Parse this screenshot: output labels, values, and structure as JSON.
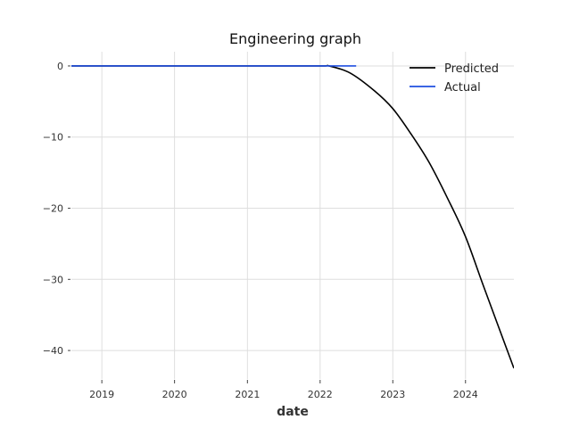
{
  "chart_data": {
    "type": "line",
    "title": "Engineering graph",
    "xlabel": "date",
    "ylabel": "",
    "xlim": [
      "2018-08-01",
      "2024-08-31"
    ],
    "ylim": [
      -44,
      2
    ],
    "x_ticks": [
      "2019",
      "2020",
      "2021",
      "2022",
      "2023",
      "2024"
    ],
    "y_ticks": [
      0,
      -10,
      -20,
      -30,
      -40
    ],
    "y_tick_labels": [
      "0",
      "−10",
      "−20",
      "−30",
      "−40"
    ],
    "grid": true,
    "legend_position": "top-right",
    "series": [
      {
        "name": "Predicted",
        "color": "#000000",
        "x": [
          "2018-08-01",
          "2019-01-01",
          "2020-01-01",
          "2021-01-01",
          "2022-01-01",
          "2022-02-15",
          "2022-06-01",
          "2022-10-01",
          "2023-01-01",
          "2023-04-01",
          "2023-07-01",
          "2023-10-01",
          "2024-01-01",
          "2024-04-01",
          "2024-08-31"
        ],
        "y": [
          0,
          0,
          0,
          0,
          0,
          0,
          -1.0,
          -3.5,
          -6.0,
          -9.5,
          -13.5,
          -18.5,
          -24.0,
          -31.0,
          -42.5
        ]
      },
      {
        "name": "Actual",
        "color": "#1f4fe0",
        "x": [
          "2018-08-01",
          "2019-01-01",
          "2020-01-01",
          "2021-01-01",
          "2022-01-01",
          "2022-07-01"
        ],
        "y": [
          0,
          0,
          0,
          0,
          0,
          0
        ]
      }
    ]
  }
}
